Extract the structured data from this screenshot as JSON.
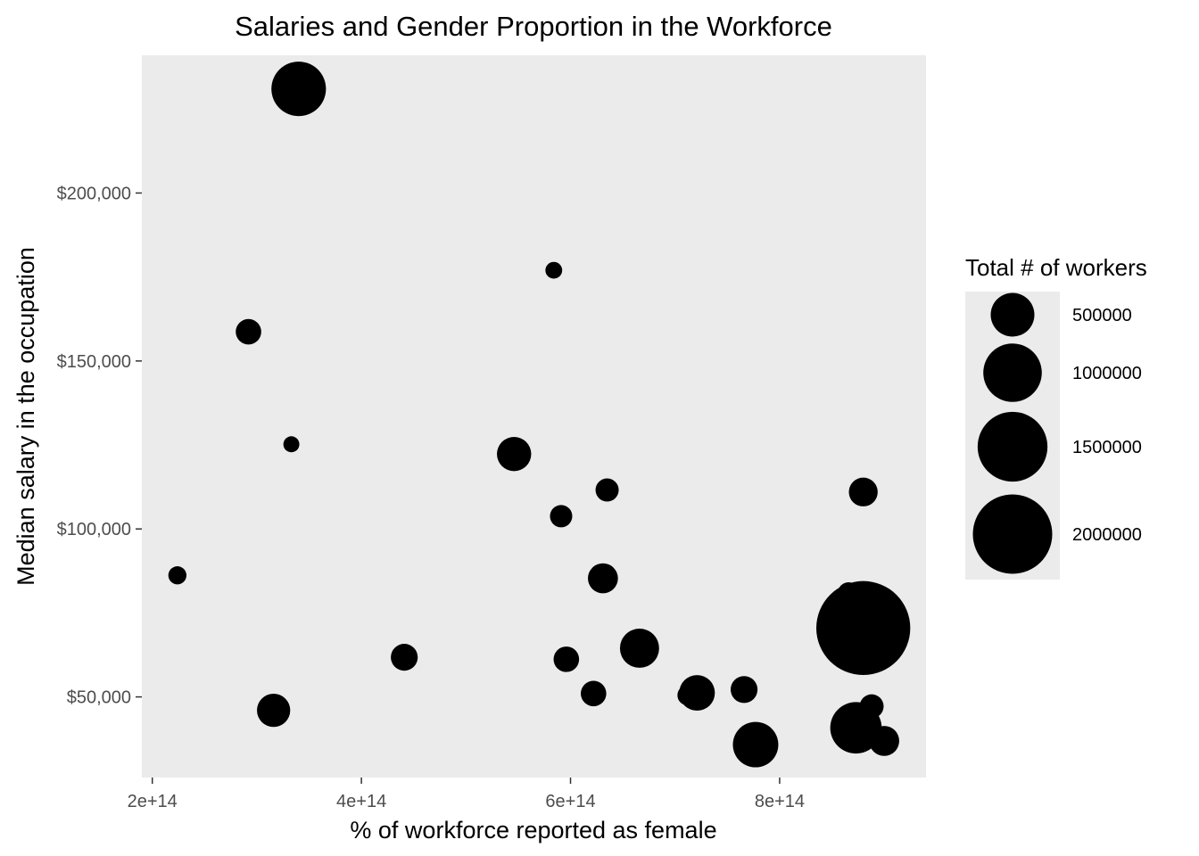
{
  "chart_data": {
    "type": "scatter",
    "title": "Salaries and Gender Proportion in the Workforce",
    "xlabel": "% of workforce reported as female",
    "ylabel": "Median salary in the occupation",
    "xlim": [
      190000000000000,
      940000000000000
    ],
    "ylim": [
      26000,
      241000
    ],
    "x_ticks": [
      {
        "value": 200000000000000,
        "label": "2e+14"
      },
      {
        "value": 400000000000000,
        "label": "4e+14"
      },
      {
        "value": 600000000000000,
        "label": "6e+14"
      },
      {
        "value": 800000000000000,
        "label": "8e+14"
      }
    ],
    "y_ticks": [
      {
        "value": 50000,
        "label": "$50,000"
      },
      {
        "value": 100000,
        "label": "$100,000"
      },
      {
        "value": 150000,
        "label": "$150,000"
      },
      {
        "value": 200000,
        "label": "$200,000"
      }
    ],
    "grid": false,
    "panel_background": "#ebebeb",
    "point_color": "#000000",
    "legend": {
      "title": "Total # of workers",
      "placement": "right",
      "entries": [
        {
          "size": 500000,
          "label": "500000"
        },
        {
          "size": 1000000,
          "label": "1000000"
        },
        {
          "size": 1500000,
          "label": "1500000"
        },
        {
          "size": 2000000,
          "label": "2000000"
        }
      ]
    },
    "points": [
      {
        "x": 340000000000000,
        "y": 231000,
        "size": 850000
      },
      {
        "x": 584000000000000,
        "y": 177000,
        "size": 30000
      },
      {
        "x": 292000000000000,
        "y": 158700,
        "size": 120000
      },
      {
        "x": 333000000000000,
        "y": 125200,
        "size": 25000
      },
      {
        "x": 546000000000000,
        "y": 122300,
        "size": 270000
      },
      {
        "x": 635000000000000,
        "y": 111600,
        "size": 90000
      },
      {
        "x": 591000000000000,
        "y": 103800,
        "size": 80000
      },
      {
        "x": 224000000000000,
        "y": 86200,
        "size": 40000
      },
      {
        "x": 631000000000000,
        "y": 85300,
        "size": 190000
      },
      {
        "x": 441000000000000,
        "y": 61800,
        "size": 140000
      },
      {
        "x": 596000000000000,
        "y": 61200,
        "size": 120000
      },
      {
        "x": 666000000000000,
        "y": 64500,
        "size": 380000
      },
      {
        "x": 622000000000000,
        "y": 51000,
        "size": 120000
      },
      {
        "x": 712000000000000,
        "y": 50500,
        "size": 60000
      },
      {
        "x": 721000000000000,
        "y": 51200,
        "size": 300000
      },
      {
        "x": 766000000000000,
        "y": 52200,
        "size": 140000
      },
      {
        "x": 316000000000000,
        "y": 46000,
        "size": 250000
      },
      {
        "x": 777000000000000,
        "y": 35800,
        "size": 550000
      },
      {
        "x": 880000000000000,
        "y": 111000,
        "size": 170000
      },
      {
        "x": 866000000000000,
        "y": 80800,
        "size": 80000
      },
      {
        "x": 880000000000000,
        "y": 70500,
        "size": 2900000
      },
      {
        "x": 873000000000000,
        "y": 40800,
        "size": 740000
      },
      {
        "x": 888000000000000,
        "y": 47200,
        "size": 100000
      },
      {
        "x": 900000000000000,
        "y": 36900,
        "size": 190000
      }
    ]
  }
}
